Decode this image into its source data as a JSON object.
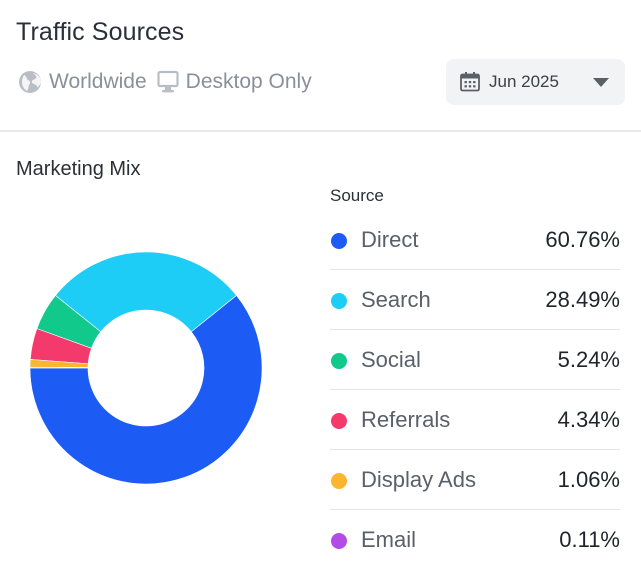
{
  "header": {
    "title": "Traffic Sources",
    "region_label": "Worldwide",
    "device_label": "Desktop Only",
    "date_label": "Jun 2025"
  },
  "section": {
    "title": "Marketing Mix",
    "legend_header": "Source"
  },
  "icons": {
    "region": "globe-icon",
    "device": "desktop-icon",
    "date": "calendar-icon",
    "dropdown": "chevron-down-icon"
  },
  "chart_data": {
    "type": "pie",
    "variant": "donut",
    "title": "Marketing Mix",
    "legend_title": "Source",
    "categories": [
      "Direct",
      "Search",
      "Social",
      "Referrals",
      "Display Ads",
      "Email"
    ],
    "values": [
      60.76,
      28.49,
      5.24,
      4.34,
      1.06,
      0.11
    ],
    "labels": [
      "60.76%",
      "28.49%",
      "5.24%",
      "4.34%",
      "1.06%",
      "0.11%"
    ],
    "colors": [
      "#1c5cf5",
      "#1ecdf5",
      "#10c98a",
      "#f43a6c",
      "#fbb52e",
      "#b44be6"
    ],
    "unit": "%",
    "legend_position": "right"
  }
}
